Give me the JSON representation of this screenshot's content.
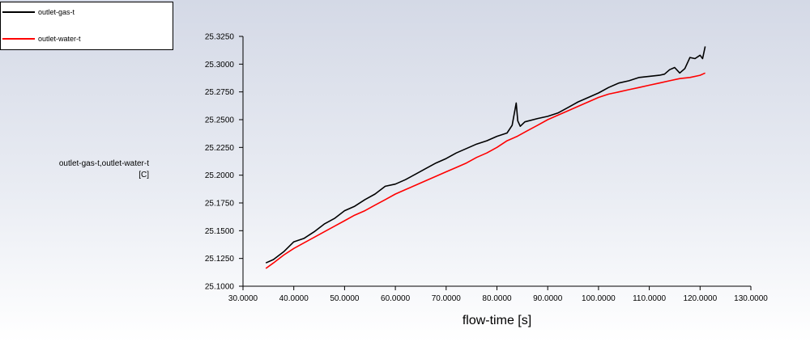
{
  "chart_data": {
    "type": "line",
    "xlabel": "flow-time [s]",
    "ylabel": "outlet-gas-t,outlet-water-t",
    "yunit": "[C]",
    "xlim": [
      30,
      130
    ],
    "ylim": [
      25.1,
      25.325
    ],
    "xticks": [
      "30.0000",
      "40.0000",
      "50.0000",
      "60.0000",
      "70.0000",
      "80.0000",
      "90.0000",
      "100.0000",
      "110.0000",
      "120.0000",
      "130.0000"
    ],
    "yticks": [
      "25.1000",
      "25.1250",
      "25.1500",
      "25.1750",
      "25.2000",
      "25.2250",
      "25.2500",
      "25.2750",
      "25.3000",
      "25.3250"
    ],
    "legend_position": "top-left",
    "series": [
      {
        "name": "outlet-gas-t",
        "color": "#000000",
        "x": [
          34.5,
          36,
          38,
          40,
          42,
          44,
          46,
          48,
          50,
          52,
          54,
          56,
          58,
          60,
          62,
          64,
          66,
          68,
          70,
          72,
          74,
          76,
          78,
          80,
          82,
          83,
          83.8,
          84.1,
          84.6,
          85.5,
          88,
          90,
          92,
          94,
          96,
          98,
          100,
          102,
          104,
          106,
          108,
          110,
          112,
          113,
          114,
          115,
          116,
          117,
          118,
          119,
          120,
          120.5,
          121
        ],
        "y": [
          25.121,
          25.124,
          25.131,
          25.14,
          25.143,
          25.149,
          25.156,
          25.161,
          25.168,
          25.172,
          25.178,
          25.183,
          25.19,
          25.192,
          25.196,
          25.201,
          25.206,
          25.211,
          25.215,
          25.22,
          25.224,
          25.228,
          25.231,
          25.235,
          25.238,
          25.245,
          25.265,
          25.249,
          25.244,
          25.248,
          25.251,
          25.253,
          25.256,
          25.261,
          25.266,
          25.27,
          25.274,
          25.279,
          25.283,
          25.285,
          25.288,
          25.289,
          25.29,
          25.291,
          25.295,
          25.297,
          25.292,
          25.296,
          25.306,
          25.305,
          25.308,
          25.305,
          25.316
        ]
      },
      {
        "name": "outlet-water-t",
        "color": "#ff0000",
        "x": [
          34.5,
          36,
          38,
          40,
          42,
          44,
          46,
          48,
          50,
          52,
          54,
          56,
          58,
          60,
          62,
          64,
          66,
          68,
          70,
          72,
          74,
          76,
          78,
          80,
          82,
          84,
          86,
          88,
          90,
          92,
          94,
          96,
          98,
          100,
          102,
          104,
          106,
          108,
          110,
          112,
          114,
          116,
          118,
          120,
          121
        ],
        "y": [
          25.116,
          25.121,
          25.128,
          25.134,
          25.139,
          25.144,
          25.149,
          25.154,
          25.159,
          25.164,
          25.168,
          25.173,
          25.178,
          25.183,
          25.187,
          25.191,
          25.195,
          25.199,
          25.203,
          25.207,
          25.211,
          25.216,
          25.22,
          25.225,
          25.231,
          25.235,
          25.24,
          25.245,
          25.25,
          25.254,
          25.258,
          25.262,
          25.266,
          25.27,
          25.273,
          25.275,
          25.277,
          25.279,
          25.281,
          25.283,
          25.285,
          25.287,
          25.288,
          25.29,
          25.292
        ]
      }
    ]
  }
}
